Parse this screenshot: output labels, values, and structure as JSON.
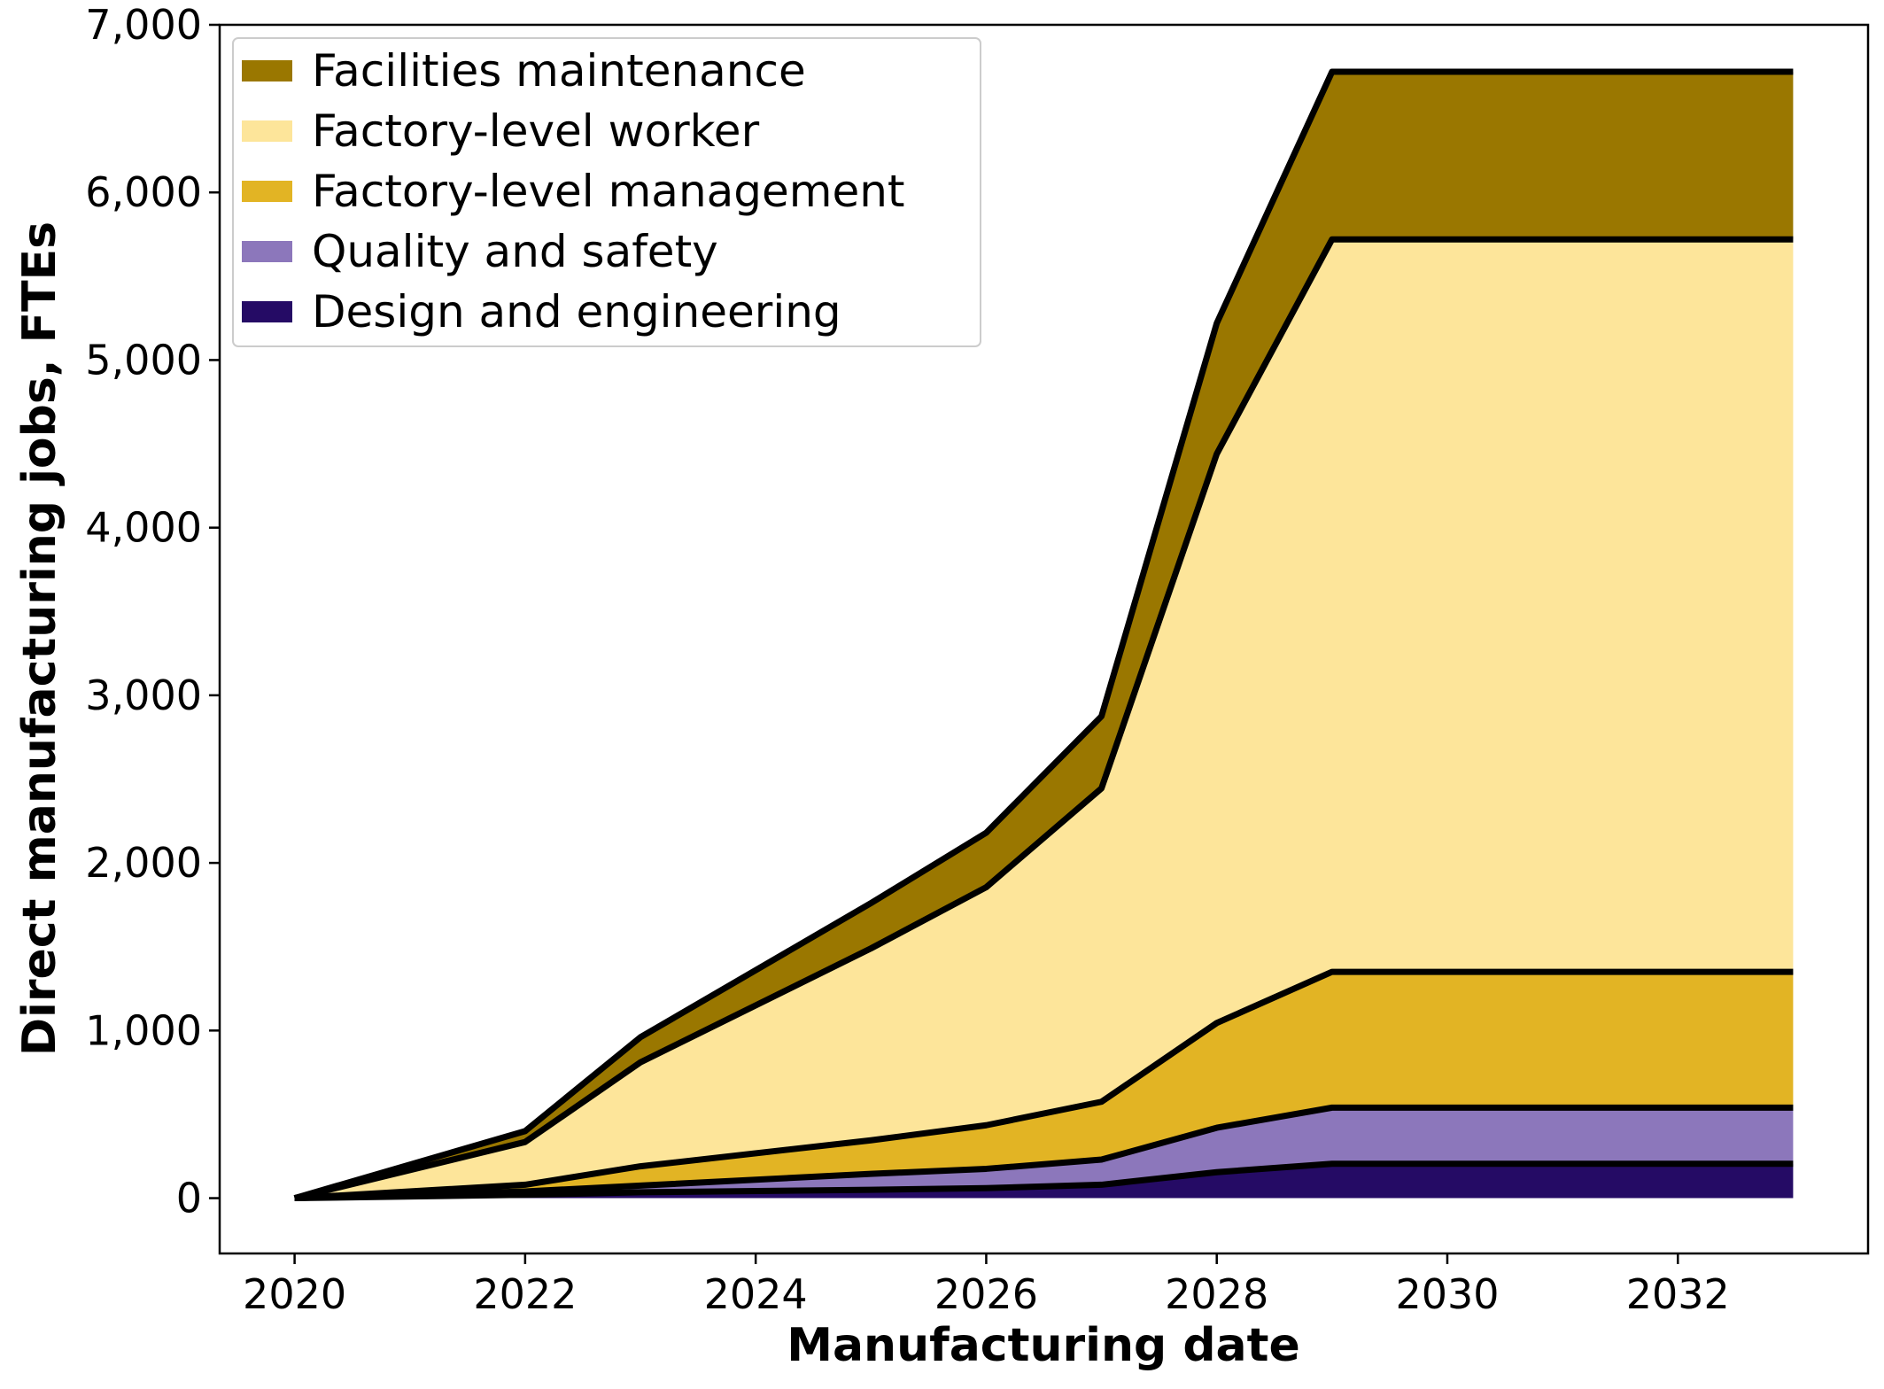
{
  "chart_data": {
    "type": "area",
    "stacked": true,
    "xlabel": "Manufacturing date",
    "ylabel": "Direct manufacturing jobs, FTEs",
    "xlim": [
      2019.35,
      2033.65
    ],
    "ylim": [
      -330,
      7000
    ],
    "x_ticks": [
      2020,
      2022,
      2024,
      2026,
      2028,
      2030,
      2032
    ],
    "y_ticks": [
      0,
      1000,
      2000,
      3000,
      4000,
      5000,
      6000,
      7000
    ],
    "y_tick_labels": [
      "0",
      "1,000",
      "2,000",
      "3,000",
      "4,000",
      "5,000",
      "6,000",
      "7,000"
    ],
    "grid": false,
    "legend_position": "top-left",
    "x": [
      2020,
      2022,
      2023,
      2025,
      2026,
      2027,
      2028,
      2029,
      2033
    ],
    "series": [
      {
        "name": "Design and engineering",
        "color": "#250b65",
        "values": [
          0,
          20,
          35,
          50,
          60,
          80,
          155,
          205,
          205
        ]
      },
      {
        "name": "Quality and safety",
        "color": "#8c77bb",
        "values": [
          0,
          20,
          40,
          95,
          115,
          150,
          265,
          335,
          335
        ]
      },
      {
        "name": "Factory-level management",
        "color": "#e2b424",
        "values": [
          0,
          40,
          115,
          200,
          260,
          345,
          625,
          810,
          810
        ]
      },
      {
        "name": "Factory-level worker",
        "color": "#fde59a",
        "values": [
          0,
          255,
          620,
          1145,
          1420,
          1870,
          3395,
          4370,
          4370
        ]
      },
      {
        "name": "Facilities maintenance",
        "color": "#9a7700",
        "values": [
          0,
          65,
          150,
          270,
          325,
          430,
          780,
          1000,
          1000
        ]
      }
    ],
    "legend_order": [
      "Facilities maintenance",
      "Factory-level worker",
      "Factory-level management",
      "Quality and safety",
      "Design and engineering"
    ]
  }
}
